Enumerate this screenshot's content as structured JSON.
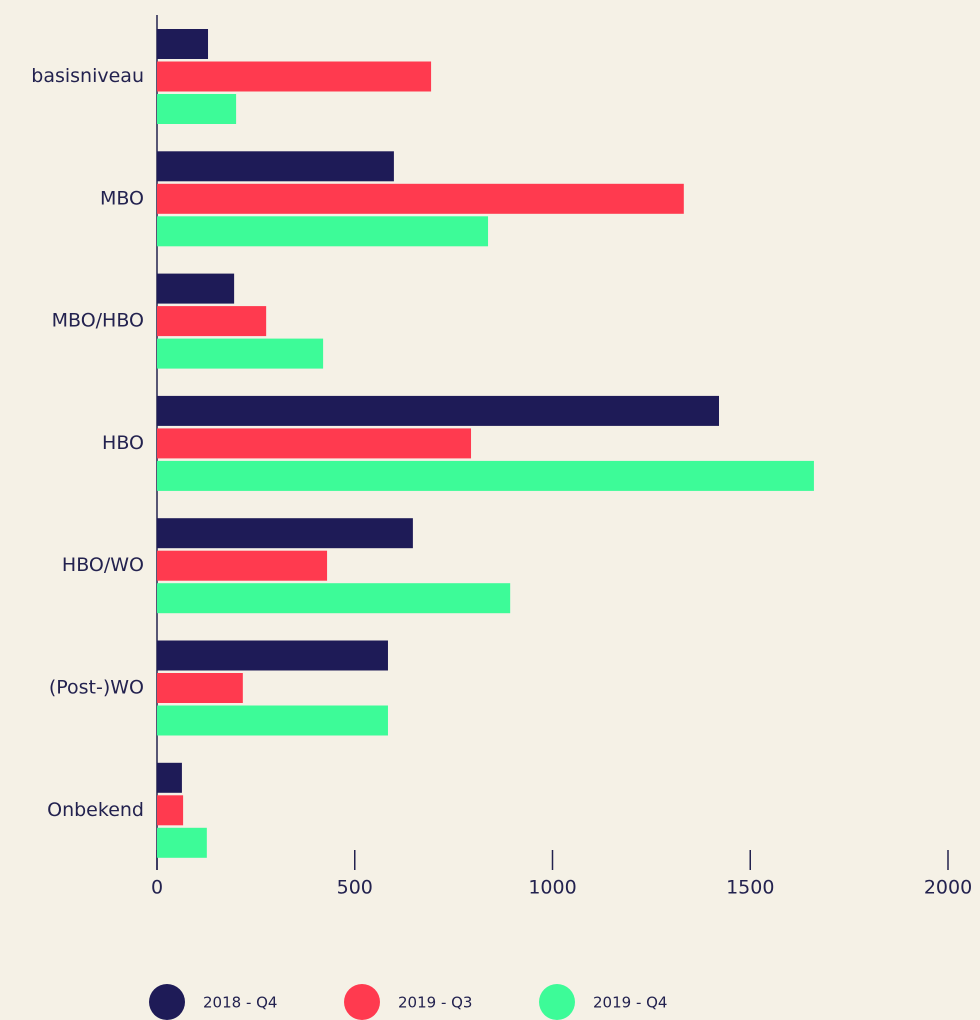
{
  "chart_data": {
    "type": "hbar",
    "categories": [
      "basisniveau",
      "MBO",
      "MBO/HBO",
      "HBO",
      "HBO/WO",
      "(Post-)WO",
      "Onbekend"
    ],
    "series": [
      {
        "name": "2018 - Q4",
        "color": "#1e1b57",
        "values": [
          129,
          599,
          195,
          1421,
          647,
          584,
          63
        ]
      },
      {
        "name": "2019 - Q3",
        "color": "#ff3a4f",
        "values": [
          693,
          1332,
          276,
          794,
          430,
          217,
          66
        ]
      },
      {
        "name": "2019 - Q4",
        "color": "#3dfb98",
        "values": [
          200,
          837,
          420,
          1661,
          893,
          584,
          126
        ]
      }
    ],
    "xlim": [
      0,
      2000
    ],
    "xticks": [
      0,
      500,
      1000,
      1500,
      2000
    ],
    "legend": "bottom"
  }
}
